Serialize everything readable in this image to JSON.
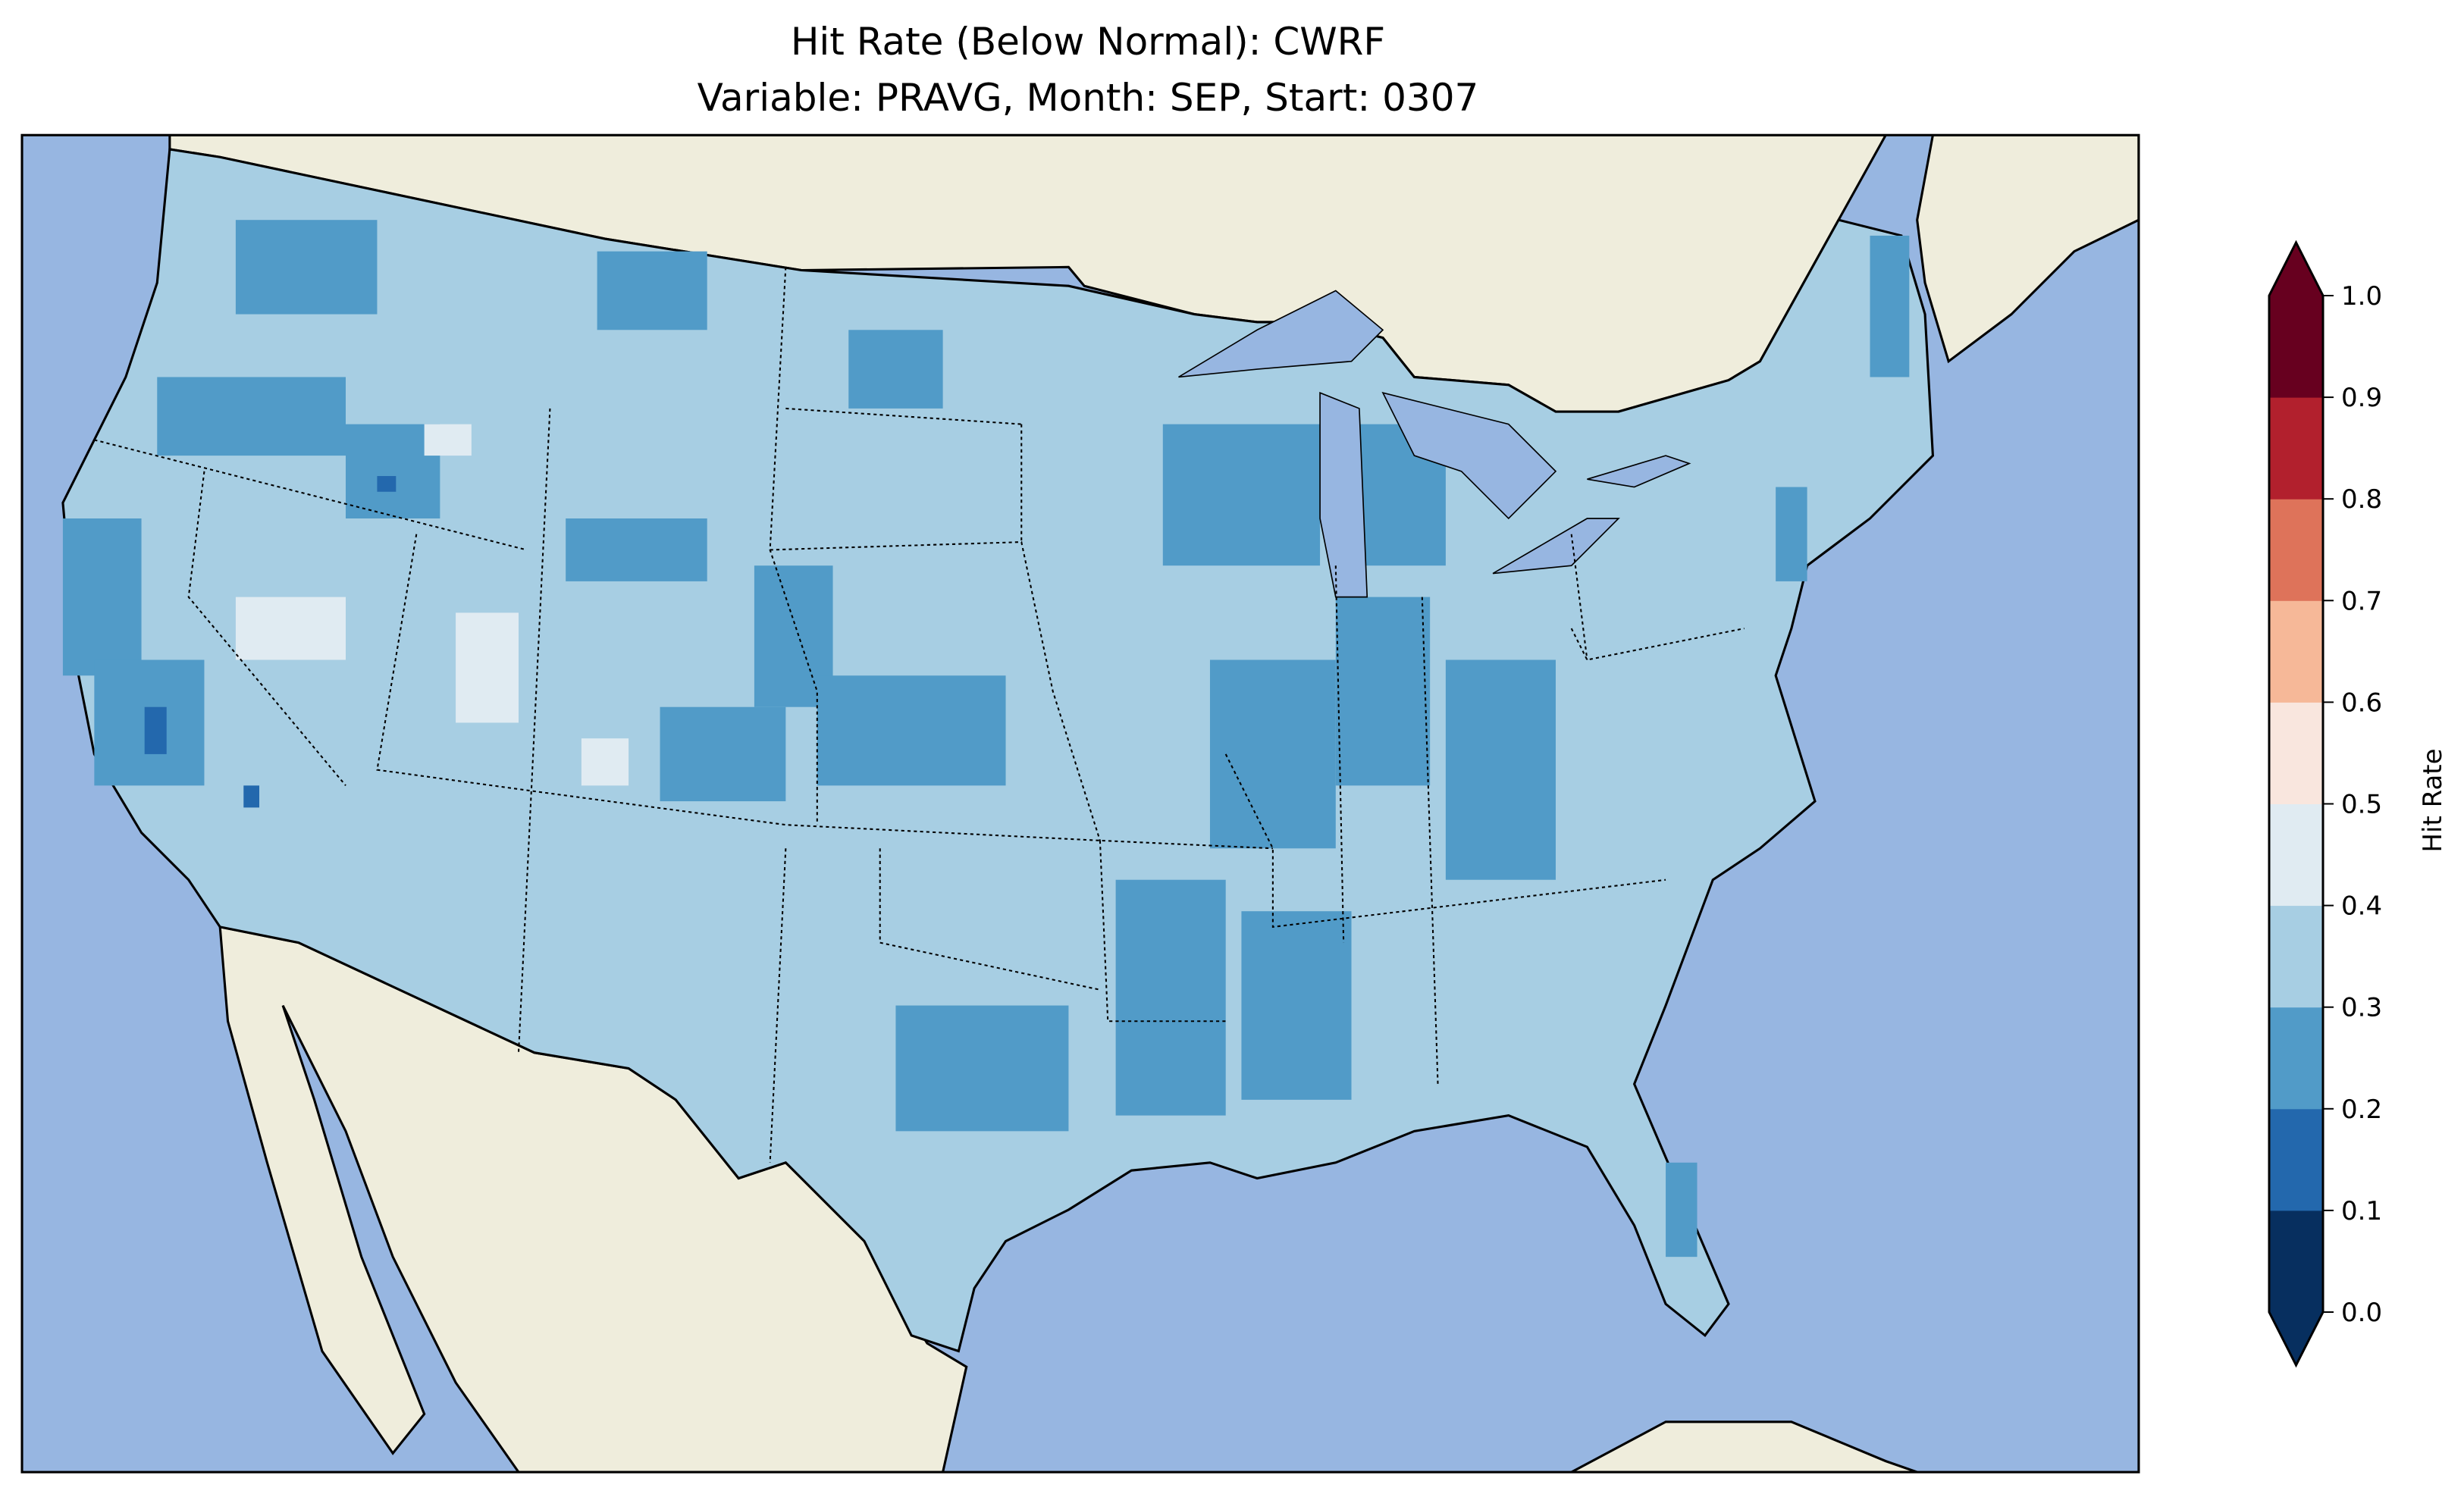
{
  "chart_data": {
    "type": "heatmap",
    "title": "Hit Rate (Below Normal): CWRF",
    "subtitle": "Variable: PRAVG, Month: SEP, Start: 0307",
    "region": "Contiguous United States",
    "colorbar": {
      "label": "Hit Rate",
      "range": [
        0.0,
        1.0
      ],
      "extend": "both",
      "ticks": [
        "0.0",
        "0.1",
        "0.2",
        "0.3",
        "0.4",
        "0.5",
        "0.6",
        "0.7",
        "0.8",
        "0.9",
        "1.0"
      ],
      "bins": [
        {
          "from": 0.0,
          "to": 0.1,
          "color": "#072f5f"
        },
        {
          "from": 0.1,
          "to": 0.2,
          "color": "#2368ad"
        },
        {
          "from": 0.2,
          "to": 0.3,
          "color": "#519bc8"
        },
        {
          "from": 0.3,
          "to": 0.4,
          "color": "#a7cee3"
        },
        {
          "from": 0.4,
          "to": 0.5,
          "color": "#e0ebf2"
        },
        {
          "from": 0.5,
          "to": 0.6,
          "color": "#f9e6de"
        },
        {
          "from": 0.6,
          "to": 0.7,
          "color": "#f6b898"
        },
        {
          "from": 0.7,
          "to": 0.8,
          "color": "#de735a"
        },
        {
          "from": 0.8,
          "to": 0.9,
          "color": "#b2202d"
        },
        {
          "from": 0.9,
          "to": 1.0,
          "color": "#67001f"
        }
      ]
    },
    "dominant_value_range": [
      0.2,
      0.4
    ]
  },
  "colors": {
    "ocean": "#97b6e1",
    "land": "#efeddc"
  }
}
